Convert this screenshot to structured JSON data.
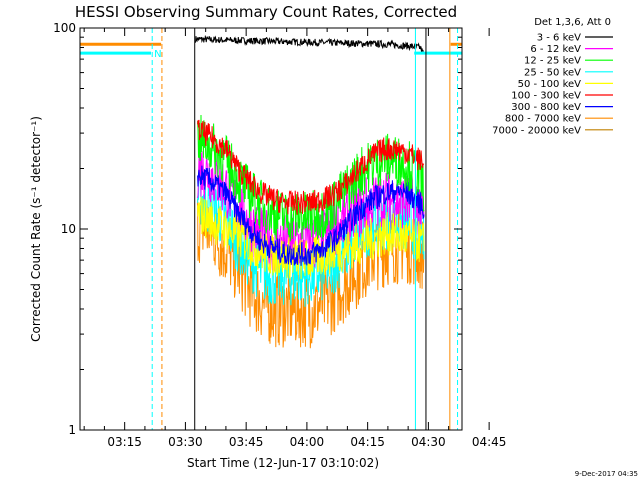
{
  "chart_data": {
    "type": "line",
    "title": "HESSI Observing Summary Count Rates, Corrected",
    "xlabel": "Start Time (12-Jun-17 03:10:02)",
    "ylabel": "Corrected Count Rate (s⁻¹ detector⁻¹)",
    "footer": "9-Dec-2017 04:35",
    "y_scale": "log",
    "ylim": [
      1,
      100
    ],
    "xlim_minutes": [
      3.97,
      98.3
    ],
    "x_ticks": [
      {
        "label": "03:15",
        "min": 15
      },
      {
        "label": "03:30",
        "min": 30
      },
      {
        "label": "03:45",
        "min": 45
      },
      {
        "label": "04:00",
        "min": 60
      },
      {
        "label": "04:15",
        "min": 75
      },
      {
        "label": "04:30",
        "min": 90
      },
      {
        "label": "04:45",
        "min": 105
      }
    ],
    "y_ticks": [
      {
        "label": "1",
        "value": 1
      },
      {
        "label": "10",
        "value": 10
      },
      {
        "label": "100",
        "value": 100
      }
    ],
    "legend_header": "Det 1,3,6, Att 0",
    "flag_marker": "N",
    "series": [
      {
        "name": "3 - 6 keV",
        "color": "#000000",
        "x": [
          32.5,
          40,
          50,
          60,
          70,
          80,
          86,
          88,
          89
        ],
        "y": [
          88,
          87,
          86,
          85,
          84,
          83,
          81,
          80,
          73
        ]
      },
      {
        "name": "6 - 12 keV",
        "color": "#ff00ff",
        "x": [
          33,
          36,
          40,
          43,
          46,
          49,
          52,
          55,
          58,
          61,
          64,
          67,
          70,
          73,
          76,
          79,
          82,
          85,
          88,
          89
        ],
        "y": [
          20,
          19,
          16,
          13,
          10.5,
          9,
          8.5,
          8.5,
          8.5,
          8.5,
          9,
          10,
          11.5,
          12.5,
          13.5,
          14,
          14,
          13.5,
          13,
          11
        ]
      },
      {
        "name": "12 - 25 keV",
        "color": "#00ff00",
        "x": [
          33,
          36,
          40,
          43,
          46,
          49,
          52,
          55,
          58,
          61,
          64,
          67,
          70,
          73,
          76,
          79,
          82,
          85,
          88,
          89
        ],
        "y": [
          28,
          26,
          22,
          18,
          15,
          13,
          12,
          11.5,
          11.5,
          11.5,
          12,
          13.5,
          16,
          19,
          21,
          22.5,
          22,
          21,
          18,
          16
        ]
      },
      {
        "name": "25 - 50 keV",
        "color": "#00ffff",
        "x": [
          33,
          36,
          40,
          43,
          46,
          49,
          52,
          55,
          58,
          61,
          64,
          67,
          70,
          73,
          76,
          79,
          82,
          85,
          88,
          89
        ],
        "y": [
          15,
          13,
          11,
          8.5,
          7,
          6,
          5.8,
          5.8,
          5.8,
          5.8,
          6,
          6.8,
          8,
          9.5,
          10.5,
          11,
          11,
          10.5,
          9.5,
          8.5
        ]
      },
      {
        "name": "50 - 100 keV",
        "color": "#ffff00",
        "x": [
          33,
          40,
          50,
          60,
          70,
          80,
          89
        ],
        "y": [
          12,
          10,
          7.5,
          7,
          8,
          9.5,
          8.5
        ]
      },
      {
        "name": "100 - 300 keV",
        "color": "#ff0000",
        "x": [
          33,
          36,
          40,
          43,
          46,
          49,
          52,
          55,
          58,
          61,
          64,
          67,
          70,
          73,
          76,
          79,
          82,
          85,
          88,
          89
        ],
        "y": [
          31,
          29,
          25,
          20,
          17,
          15,
          14,
          13.5,
          13.5,
          13.5,
          14,
          15,
          17,
          20,
          23,
          25,
          25,
          24,
          22,
          20
        ]
      },
      {
        "name": "300 - 800 keV",
        "color": "#0000ff",
        "x": [
          33,
          36,
          40,
          43,
          46,
          49,
          52,
          55,
          58,
          61,
          64,
          67,
          70,
          73,
          76,
          79,
          82,
          85,
          88,
          89
        ],
        "y": [
          18.5,
          17.5,
          15,
          12,
          10,
          8.5,
          8,
          7.5,
          7.5,
          7.5,
          8,
          9,
          10.5,
          12.5,
          14,
          15,
          15.5,
          15,
          13.5,
          12.5
        ]
      },
      {
        "name": "800 - 7000 keV",
        "color": "#ff8c00",
        "x": [
          33,
          36,
          40,
          43,
          46,
          49,
          52,
          55,
          58,
          61,
          64,
          67,
          70,
          73,
          76,
          79,
          82,
          85,
          88,
          89
        ],
        "y": [
          10.5,
          10,
          8,
          6.5,
          5,
          4.3,
          4,
          4,
          4,
          4,
          4.3,
          4.8,
          5.5,
          6.5,
          7.5,
          8,
          8.3,
          8.3,
          7.8,
          7.5
        ]
      },
      {
        "name": "7000 - 20000 keV",
        "color": "#c08000",
        "x": [],
        "y": []
      }
    ],
    "flag_segments": [
      {
        "color": "#ff8c00",
        "y": 83,
        "from": 3.97,
        "to": 24.0
      },
      {
        "color": "#00ffff",
        "y": 75,
        "from": 3.97,
        "to": 21.5
      },
      {
        "color": "#00ffff",
        "y": 75,
        "from": 86.5,
        "to": 98.3
      },
      {
        "color": "#ff8c00",
        "y": 83,
        "from": 95.5,
        "to": 98.3
      }
    ],
    "vertical_markers": [
      {
        "min": 3.97,
        "color": "#00ffff",
        "style": "solid"
      },
      {
        "min": 21.8,
        "color": "#00ffff",
        "style": "dashed"
      },
      {
        "min": 24.2,
        "color": "#ff8c00",
        "style": "dashed"
      },
      {
        "min": 32.3,
        "color": "#000000",
        "style": "solid"
      },
      {
        "min": 86.8,
        "color": "#00ffff",
        "style": "solid"
      },
      {
        "min": 89.4,
        "color": "#000000",
        "style": "solid"
      },
      {
        "min": 95.3,
        "color": "#ff8c00",
        "style": "solid"
      },
      {
        "min": 97.2,
        "color": "#00ffff",
        "style": "dashed"
      }
    ]
  }
}
